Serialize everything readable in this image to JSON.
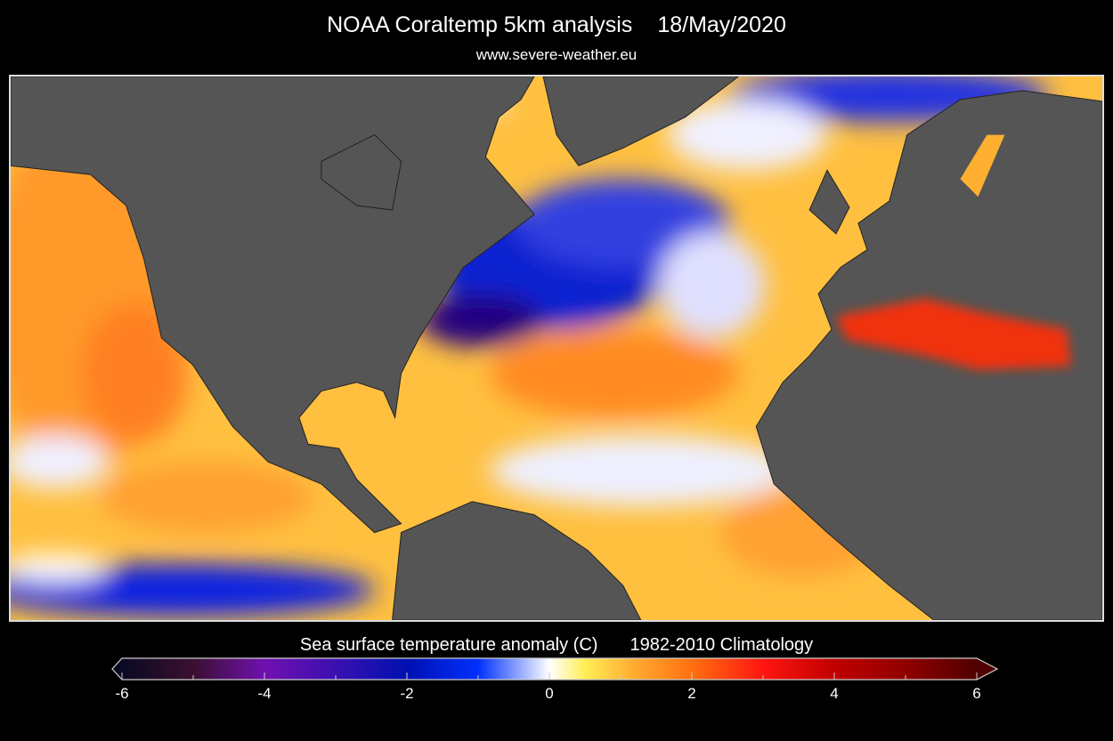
{
  "header": {
    "title": "NOAA Coraltemp 5km analysis",
    "date": "18/May/2020",
    "website": "www.severe-weather.eu"
  },
  "map": {
    "land_color": "#555555",
    "border_color": "#222222",
    "region": "North Atlantic and Eastern Pacific"
  },
  "colorbar": {
    "label": "Sea surface temperature anomaly (C)",
    "climatology": "1982-2010 Climatology",
    "range": [
      -6,
      6
    ],
    "ticks": [
      "-6",
      "-4",
      "-2",
      "0",
      "2",
      "4",
      "6"
    ],
    "stops": [
      {
        "value": -6,
        "color": "#0a0a22"
      },
      {
        "value": -5,
        "color": "#3a1030"
      },
      {
        "value": -4,
        "color": "#7010b0"
      },
      {
        "value": -3,
        "color": "#3a10b0"
      },
      {
        "value": -2,
        "color": "#0010b0"
      },
      {
        "value": -1,
        "color": "#0030ff"
      },
      {
        "value": 0,
        "color": "#ffffff"
      },
      {
        "value": 0.5,
        "color": "#ffee55"
      },
      {
        "value": 1.2,
        "color": "#ffaa30"
      },
      {
        "value": 2,
        "color": "#ff7010"
      },
      {
        "value": 3,
        "color": "#ff1510"
      },
      {
        "value": 4,
        "color": "#c00000"
      },
      {
        "value": 5,
        "color": "#900000"
      },
      {
        "value": 6,
        "color": "#500000"
      }
    ]
  }
}
